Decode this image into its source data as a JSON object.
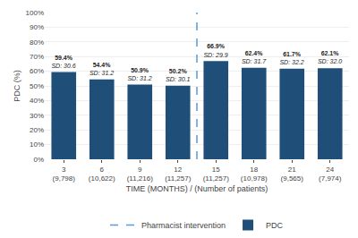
{
  "chart_data": {
    "type": "bar",
    "categories": [
      "3\n(9,798)",
      "6\n(10,622)",
      "9\n(11,216)",
      "12\n(11,257)",
      "15\n(11,257)",
      "18\n(10,978)",
      "21\n(9,565)",
      "24\n(7,974)"
    ],
    "series": [
      {
        "name": "PDC",
        "color": "#1f4e79",
        "values": [
          59.4,
          54.4,
          50.9,
          50.2,
          66.9,
          62.4,
          61.7,
          62.1
        ],
        "value_labels": [
          "59.4%",
          "54.4%",
          "50.9%",
          "50.2%",
          "66.9%",
          "62.4%",
          "61.7%",
          "62.1%"
        ],
        "sd_labels": [
          "SD: 30.6",
          "SD: 31.2",
          "SD: 31.2",
          "SD: 30.1",
          "SD: 29.9",
          "SD: 31.7",
          "SD: 32.2",
          "SD: 32.0"
        ]
      }
    ],
    "intervention": {
      "name": "Pharmacist intervention",
      "after_category": "12\n(11,257)",
      "color": "#5b9bd5",
      "line_style": "dashed"
    },
    "xlabel": "TIME (MONTHS) / (Number of patients)",
    "ylabel": "PDC (%)",
    "ylim": [
      0,
      100
    ],
    "yticks": [
      {
        "value": 0,
        "label": "0%"
      },
      {
        "value": 10,
        "label": "10%"
      },
      {
        "value": 20,
        "label": "20%"
      },
      {
        "value": 30,
        "label": "30%"
      },
      {
        "value": 40,
        "label": "40%"
      },
      {
        "value": 50,
        "label": "50%"
      },
      {
        "value": 60,
        "label": "60%"
      },
      {
        "value": 70,
        "label": "70%"
      },
      {
        "value": 80,
        "label": "80%"
      },
      {
        "value": 90,
        "label": "90%"
      },
      {
        "value": 100,
        "label": "100%"
      }
    ],
    "grid": true,
    "data_labels": true,
    "legend": "bottom"
  }
}
